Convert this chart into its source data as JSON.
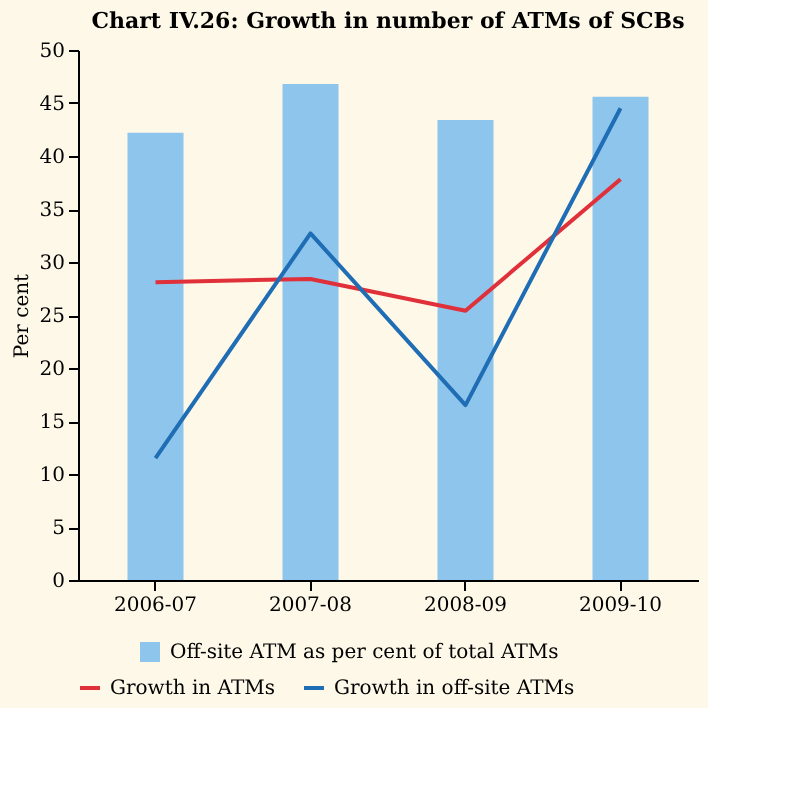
{
  "chart_data": {
    "type": "bar",
    "title": "Chart IV.26: Growth in number of ATMs of SCBs",
    "ylabel": "Per cent",
    "categories": [
      "2006-07",
      "2007-08",
      "2008-09",
      "2009-10"
    ],
    "series": [
      {
        "name": "Off-site ATM as per cent of total ATMs",
        "color": "#8ec5ec",
        "values": [
          42.2,
          46.8,
          43.4,
          45.6
        ]
      },
      {
        "name": "Growth in ATMs",
        "type": "line",
        "color": "#e0303a",
        "values": [
          28.1,
          28.4,
          25.4,
          37.8
        ]
      },
      {
        "name": "Growth in off-site ATMs",
        "type": "line",
        "color": "#1f6db4",
        "values": [
          11.5,
          32.7,
          16.5,
          44.5
        ]
      }
    ],
    "ylim": [
      0,
      50
    ],
    "yticks": [
      0,
      5,
      10,
      15,
      20,
      25,
      30,
      35,
      40,
      45,
      50
    ],
    "grid": false,
    "legend": "bottom",
    "marker": "none",
    "line_style": "solid"
  }
}
